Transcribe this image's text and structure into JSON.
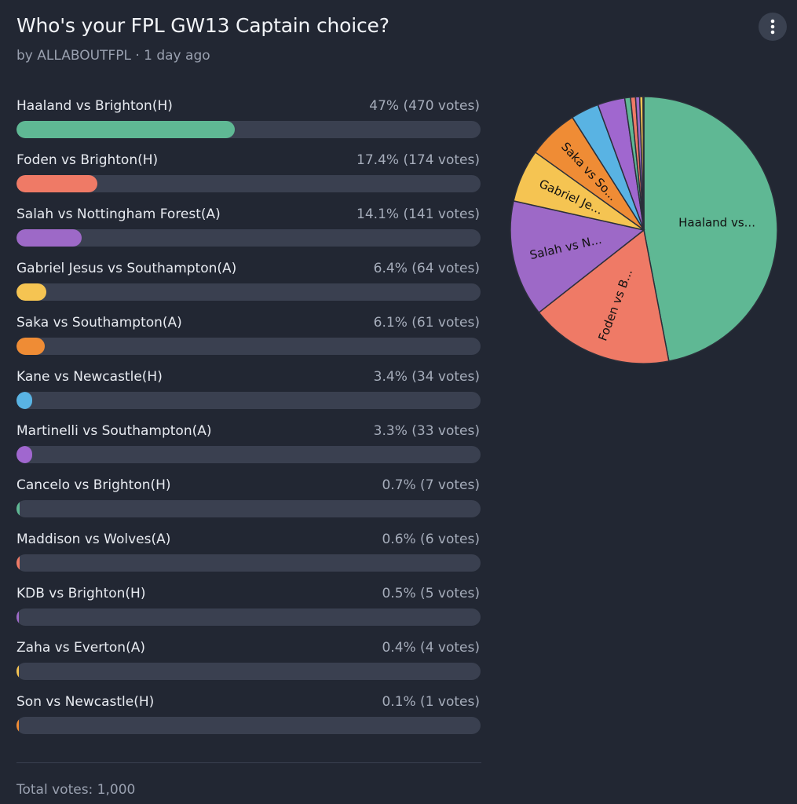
{
  "poll": {
    "title": "Who's your FPL GW13 Captain choice?",
    "meta": "by ALLABOUTFPL · 1 day ago",
    "total": "Total votes: 1,000",
    "more_icon": "more-vertical-icon"
  },
  "options": [
    {
      "label": "Haaland vs Brighton(H)",
      "pct_text": "47% (470 votes)",
      "value": 470,
      "color": "#5fb894",
      "pie_label": "Haaland vs..."
    },
    {
      "label": "Foden vs Brighton(H)",
      "pct_text": "17.4% (174 votes)",
      "value": 174,
      "color": "#ef7a66",
      "pie_label": "Foden vs B..."
    },
    {
      "label": "Salah vs Nottingham Forest(A)",
      "pct_text": "14.1% (141 votes)",
      "value": 141,
      "color": "#9d69c7",
      "pie_label": "Salah vs N..."
    },
    {
      "label": "Gabriel Jesus vs Southampton(A)",
      "pct_text": "6.4% (64 votes)",
      "value": 64,
      "color": "#f5c452",
      "pie_label": "Gabriel Je..."
    },
    {
      "label": "Saka vs Southampton(A)",
      "pct_text": "6.1% (61 votes)",
      "value": 61,
      "color": "#ef8c35",
      "pie_label": "Saka vs So..."
    },
    {
      "label": "Kane vs Newcastle(H)",
      "pct_text": "3.4% (34 votes)",
      "value": 34,
      "color": "#59b3e3",
      "pie_label": ""
    },
    {
      "label": "Martinelli vs Southampton(A)",
      "pct_text": "3.3% (33 votes)",
      "value": 33,
      "color": "#a067cf",
      "pie_label": ""
    },
    {
      "label": "Cancelo vs Brighton(H)",
      "pct_text": "0.7% (7 votes)",
      "value": 7,
      "color": "#5fb894",
      "pie_label": ""
    },
    {
      "label": "Maddison vs Wolves(A)",
      "pct_text": "0.6% (6 votes)",
      "value": 6,
      "color": "#ef7a66",
      "pie_label": ""
    },
    {
      "label": "KDB vs Brighton(H)",
      "pct_text": "0.5% (5 votes)",
      "value": 5,
      "color": "#9d69c7",
      "pie_label": ""
    },
    {
      "label": "Zaha vs Everton(A)",
      "pct_text": "0.4% (4 votes)",
      "value": 4,
      "color": "#f5c452",
      "pie_label": ""
    },
    {
      "label": "Son vs Newcastle(H)",
      "pct_text": "0.1% (1 votes)",
      "value": 1,
      "color": "#ef8c35",
      "pie_label": ""
    }
  ],
  "chart_data": {
    "type": "pie",
    "title": "",
    "categories": [
      "Haaland vs Brighton(H)",
      "Foden vs Brighton(H)",
      "Salah vs Nottingham Forest(A)",
      "Gabriel Jesus vs Southampton(A)",
      "Saka vs Southampton(A)",
      "Kane vs Newcastle(H)",
      "Martinelli vs Southampton(A)",
      "Cancelo vs Brighton(H)",
      "Maddison vs Wolves(A)",
      "KDB vs Brighton(H)",
      "Zaha vs Everton(A)",
      "Son vs Newcastle(H)"
    ],
    "values": [
      470,
      174,
      141,
      64,
      61,
      34,
      33,
      7,
      6,
      5,
      4,
      1
    ],
    "slice_labels": [
      "Haaland vs...",
      "Foden vs B...",
      "Salah vs N...",
      "Gabriel Je...",
      "Saka vs So...",
      "",
      "",
      "",
      "",
      "",
      "",
      ""
    ]
  }
}
